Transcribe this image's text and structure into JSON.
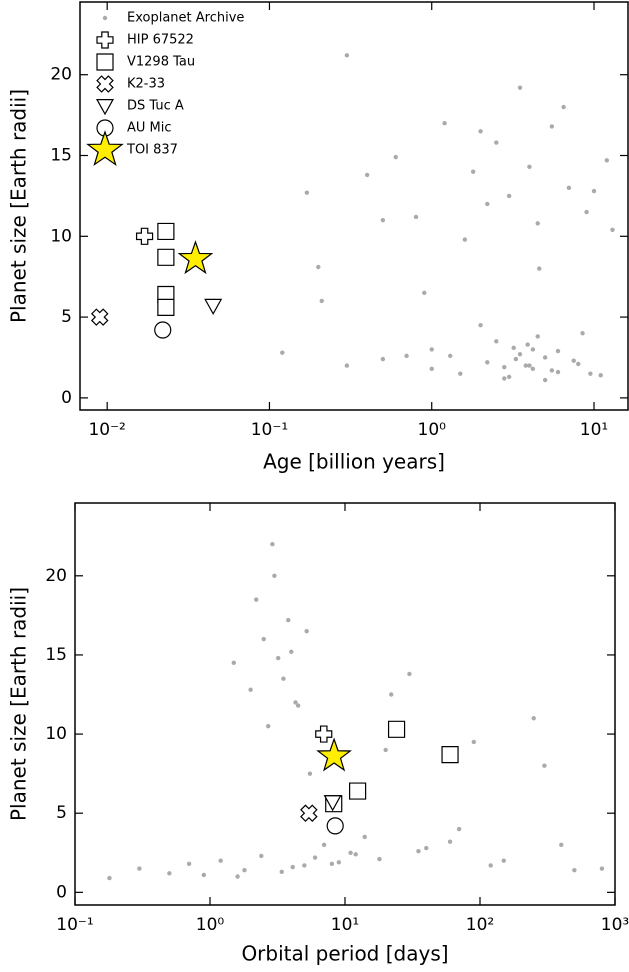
{
  "chart_data": [
    {
      "type": "scatter",
      "xlabel": "Age [billion years]",
      "ylabel": "Planet size [Earth radii]",
      "xscale": "log",
      "xlim": [
        0.0068,
        16.2
      ],
      "ylim": [
        -0.75,
        24.5
      ],
      "xticks": [
        {
          "value": 0.01,
          "label": "10⁻²"
        },
        {
          "value": 0.1,
          "label": "10⁻¹"
        },
        {
          "value": 1,
          "label": "10⁰"
        },
        {
          "value": 10,
          "label": "10¹"
        }
      ],
      "yticks": [
        0,
        5,
        10,
        15,
        20
      ],
      "legend": "upper left",
      "series": [
        {
          "name": "Exoplanet Archive",
          "marker": "dot",
          "color": "#aaaaaa",
          "x": [
            0.12,
            0.17,
            0.2,
            0.21,
            0.3,
            0.3,
            0.4,
            0.5,
            0.5,
            0.6,
            0.7,
            0.8,
            1.0,
            1.0,
            1.2,
            1.5,
            1.8,
            2.0,
            2.2,
            2.5,
            2.8,
            3.0,
            3.2,
            3.5,
            3.8,
            4.0,
            4.2,
            4.5,
            5.0,
            5.5,
            6.0,
            7.0,
            8.0,
            9.0,
            10,
            11,
            12,
            1.3,
            2.5,
            3.0,
            3.5,
            4.0,
            4.5,
            5.0,
            6.0,
            2.0,
            2.8,
            3.3,
            4.2,
            5.5,
            7.5,
            9.5,
            1.6,
            2.2,
            3.9,
            4.6,
            6.5,
            8.5,
            13,
            0.9
          ],
          "values": [
            2.8,
            12.7,
            8.1,
            6.0,
            21.2,
            2.0,
            13.8,
            11.0,
            2.4,
            14.9,
            2.6,
            11.2,
            1.8,
            3.0,
            17.0,
            1.5,
            14.0,
            16.5,
            2.2,
            15.8,
            1.2,
            12.5,
            3.1,
            19.2,
            2.0,
            14.3,
            1.8,
            10.8,
            2.5,
            16.8,
            1.6,
            13.0,
            2.1,
            11.5,
            12.8,
            1.4,
            14.7,
            2.6,
            3.5,
            1.3,
            2.7,
            2.0,
            3.8,
            1.1,
            2.9,
            4.5,
            1.9,
            2.4,
            3.0,
            1.7,
            2.3,
            1.5,
            9.8,
            12.0,
            3.3,
            8.0,
            18.0,
            4.0,
            10.4,
            6.5
          ]
        },
        {
          "name": "HIP 67522",
          "marker": "plus",
          "color": "#ffffff",
          "x": [
            0.017
          ],
          "values": [
            10.0
          ]
        },
        {
          "name": "V1298 Tau",
          "marker": "square",
          "color": "#ffffff",
          "x": [
            0.023,
            0.023,
            0.023,
            0.023
          ],
          "values": [
            10.3,
            8.7,
            6.4,
            5.6
          ]
        },
        {
          "name": "K2-33",
          "marker": "x",
          "color": "#ffffff",
          "x": [
            0.009
          ],
          "values": [
            5.0
          ]
        },
        {
          "name": "DS Tuc A",
          "marker": "triangle",
          "color": "#ffffff",
          "x": [
            0.045
          ],
          "values": [
            5.7
          ]
        },
        {
          "name": "AU Mic",
          "marker": "circle",
          "color": "#ffffff",
          "x": [
            0.022
          ],
          "values": [
            4.2
          ]
        },
        {
          "name": "TOI 837",
          "marker": "star",
          "color": "#ffee00",
          "x": [
            0.035
          ],
          "values": [
            8.6
          ]
        }
      ]
    },
    {
      "type": "scatter",
      "xlabel": "Orbital period [days]",
      "ylabel": "Planet size [Earth radii]",
      "xscale": "log",
      "xlim": [
        0.1,
        1000
      ],
      "ylim": [
        -0.8,
        24.6
      ],
      "xticks": [
        {
          "value": 0.1,
          "label": "10⁻¹"
        },
        {
          "value": 1,
          "label": "10⁰"
        },
        {
          "value": 10,
          "label": "10¹"
        },
        {
          "value": 100,
          "label": "10²"
        },
        {
          "value": 1000,
          "label": "10³"
        }
      ],
      "yticks": [
        0,
        5,
        10,
        15,
        20
      ],
      "series": [
        {
          "marker": "dot",
          "color": "#aaaaaa",
          "x": [
            0.18,
            0.3,
            0.5,
            0.7,
            0.9,
            1.2,
            1.5,
            2.0,
            2.5,
            3.0,
            3.5,
            4.0,
            4.5,
            5.0,
            6.0,
            7.0,
            9.0,
            11,
            14,
            18,
            22,
            30,
            40,
            60,
            90,
            150,
            250,
            400,
            800,
            1.8,
            2.2,
            2.7,
            3.2,
            3.8,
            4.3,
            5.2,
            2.9,
            3.4,
            4.1,
            2.4,
            1.6,
            5.5,
            8,
            12,
            20,
            35,
            70,
            120,
            300,
            500
          ],
          "values": [
            0.9,
            1.5,
            1.2,
            1.8,
            1.1,
            2.0,
            14.5,
            12.8,
            16.0,
            20.0,
            13.5,
            15.2,
            11.8,
            1.7,
            2.2,
            3.0,
            1.9,
            2.5,
            3.5,
            2.1,
            12.5,
            13.8,
            2.8,
            3.2,
            9.5,
            2.0,
            11.0,
            3.0,
            1.5,
            1.4,
            18.5,
            10.5,
            14.8,
            17.2,
            12.0,
            16.5,
            22.0,
            1.3,
            1.6,
            2.3,
            1.0,
            7.5,
            1.8,
            2.4,
            9.0,
            2.6,
            4.0,
            1.7,
            8.0,
            1.4
          ]
        },
        {
          "marker": "plus",
          "color": "#ffffff",
          "x": [
            6.96
          ],
          "values": [
            10.0
          ]
        },
        {
          "marker": "square",
          "color": "#ffffff",
          "x": [
            8.25,
            12.4,
            24.1,
            60
          ],
          "values": [
            5.6,
            6.4,
            10.3,
            8.7
          ]
        },
        {
          "marker": "x",
          "color": "#ffffff",
          "x": [
            5.4
          ],
          "values": [
            5.0
          ]
        },
        {
          "marker": "triangle",
          "color": "#ffffff",
          "x": [
            8.1
          ],
          "values": [
            5.7
          ]
        },
        {
          "marker": "circle",
          "color": "#ffffff",
          "x": [
            8.46
          ],
          "values": [
            4.2
          ]
        },
        {
          "marker": "star",
          "color": "#ffee00",
          "x": [
            8.3
          ],
          "values": [
            8.6
          ]
        }
      ]
    }
  ]
}
